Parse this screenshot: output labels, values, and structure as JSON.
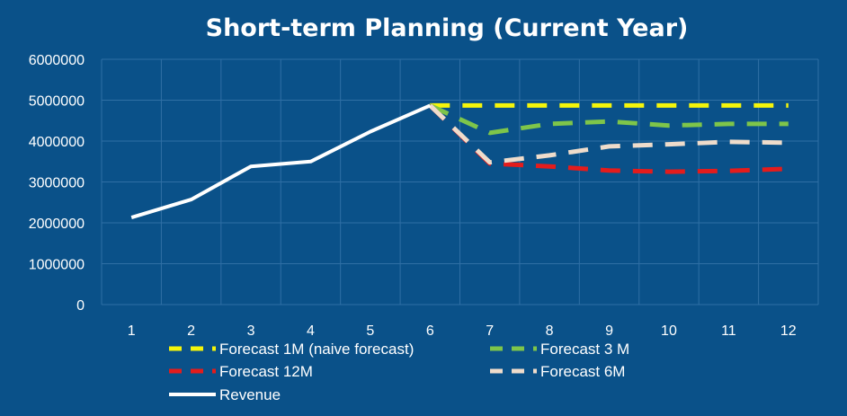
{
  "chart_data": {
    "type": "line",
    "title": "Short-term Planning (Current Year)",
    "xlabel": "",
    "ylabel": "",
    "x": [
      1,
      2,
      3,
      4,
      5,
      6,
      7,
      8,
      9,
      10,
      11,
      12
    ],
    "ylim": [
      0,
      6000000
    ],
    "yticks": [
      0,
      1000000,
      2000000,
      3000000,
      4000000,
      5000000,
      6000000
    ],
    "grid": true,
    "legend_position": "bottom",
    "series": [
      {
        "name": "Forecast 1M (naive forecast)",
        "color": "#f5f50a",
        "style": "dashed",
        "x": [
          6,
          7,
          8,
          9,
          10,
          11,
          12
        ],
        "values": [
          4870000,
          4870000,
          4870000,
          4870000,
          4870000,
          4870000,
          4870000
        ]
      },
      {
        "name": "Forecast 3 M",
        "color": "#7ec54a",
        "style": "dashed",
        "x": [
          6,
          7,
          8,
          9,
          10,
          11,
          12
        ],
        "values": [
          4870000,
          4200000,
          4420000,
          4480000,
          4380000,
          4420000,
          4420000
        ]
      },
      {
        "name": "Forecast 12M",
        "color": "#e41c1c",
        "style": "dashed",
        "x": [
          6,
          7,
          8,
          9,
          10,
          11,
          12
        ],
        "values": [
          4870000,
          3450000,
          3380000,
          3280000,
          3250000,
          3270000,
          3320000
        ]
      },
      {
        "name": "Forecast 6M",
        "color": "#efdccb",
        "style": "dashed",
        "x": [
          6,
          7,
          8,
          9,
          10,
          11,
          12
        ],
        "values": [
          4870000,
          3480000,
          3650000,
          3870000,
          3920000,
          3980000,
          3960000
        ]
      },
      {
        "name": "Revenue",
        "color": "#ffffff",
        "style": "solid",
        "x": [
          1,
          2,
          3,
          4,
          5,
          6
        ],
        "values": [
          2130000,
          2570000,
          3380000,
          3500000,
          4230000,
          4870000
        ]
      }
    ]
  }
}
